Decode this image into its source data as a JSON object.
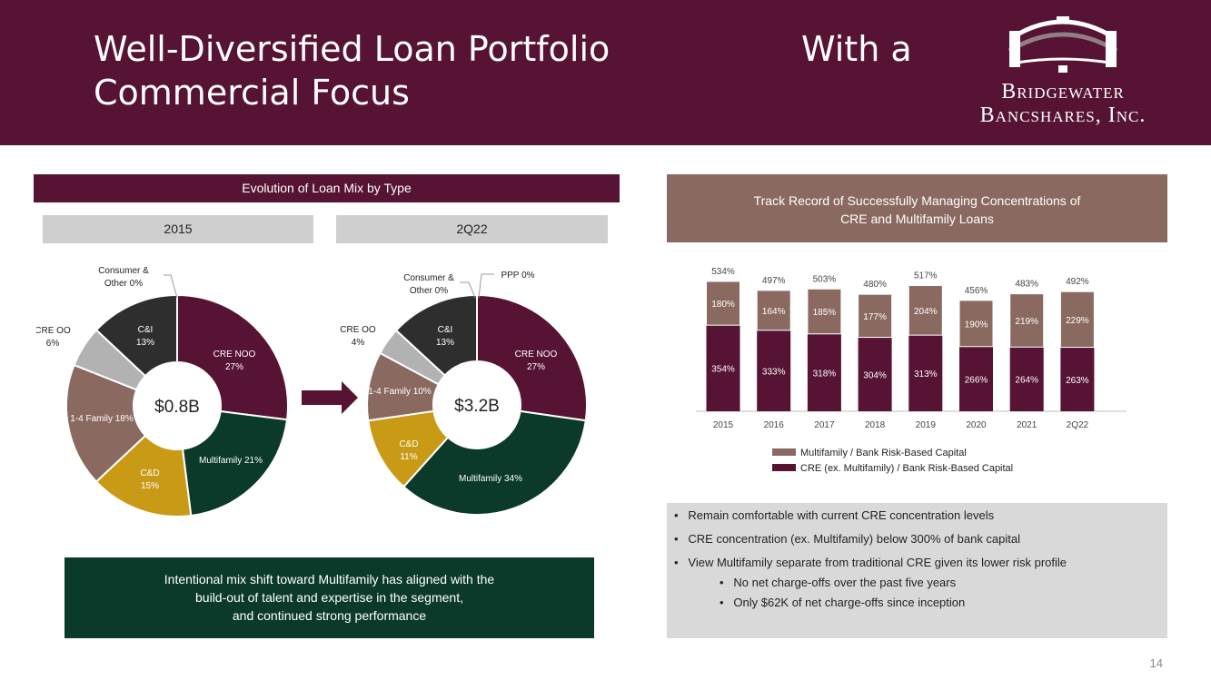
{
  "header": {
    "title_line1": "Well-Diversified Loan Portfolio",
    "title_with": "With a",
    "title_line2": "Commercial Focus",
    "logo_line1": "Bridgewater",
    "logo_line2": "Bancshares, Inc."
  },
  "left": {
    "section_title": "Evolution of Loan Mix by Type",
    "footer_line1": "Intentional mix shift toward Multifamily has aligned with the",
    "footer_line2": "build-out of talent and expertise in the segment,",
    "footer_line3": "and continued strong performance"
  },
  "right": {
    "section_title_line1": "Track Record of Successfully Managing Concentrations of",
    "section_title_line2": "CRE and Multifamily Loans",
    "bullets": [
      "Remain comfortable with current CRE concentration levels",
      "CRE concentration (ex. Multifamily) below 300% of bank capital",
      "View Multifamily separate from traditional CRE given its lower risk profile"
    ],
    "sub_bullets": [
      "No net charge-offs over the past five years",
      "Only $62K of net charge-offs since inception"
    ]
  },
  "page_number": "14",
  "colors": {
    "brand": "#561333",
    "cre_noo": "#561333",
    "multifamily": "#0b3a2b",
    "cd": "#c99a16",
    "one_four": "#8a6a60",
    "cre_oo": "#b2b2b2",
    "ci": "#2e2e2e",
    "chart_top": "#8a6a60",
    "chart_bottom": "#561333"
  },
  "chart_data": [
    {
      "type": "pie",
      "title": "2015",
      "center_label": "$0.8B",
      "slices": [
        {
          "label": "CRE NOO",
          "value": 27,
          "value_label": "27%",
          "label_style": "inside_two_line"
        },
        {
          "label": "Multifamily",
          "value": 21,
          "value_label": "21%",
          "label_style": "inside_one_line"
        },
        {
          "label": "C&D",
          "value": 15,
          "value_label": "15%",
          "label_style": "inside_two_line"
        },
        {
          "label": "1-4 Family",
          "value": 18,
          "value_label": "18%",
          "label_style": "inside_one_line"
        },
        {
          "label": "CRE OO",
          "value": 6,
          "value_label": "6%",
          "label_style": "outside"
        },
        {
          "label": "C&I",
          "value": 13,
          "value_label": "13%",
          "label_style": "inside_two_line"
        },
        {
          "label": "Consumer & Other",
          "value": 0,
          "value_label": "0%",
          "label_style": "outside"
        }
      ]
    },
    {
      "type": "pie",
      "title": "2Q22",
      "center_label": "$3.2B",
      "slices": [
        {
          "label": "CRE NOO",
          "value": 27,
          "value_label": "27%",
          "label_style": "inside_two_line"
        },
        {
          "label": "Multifamily",
          "value": 34,
          "value_label": "34%",
          "label_style": "inside_one_line"
        },
        {
          "label": "C&D",
          "value": 11,
          "value_label": "11%",
          "label_style": "inside_two_line"
        },
        {
          "label": "1-4 Family",
          "value": 10,
          "value_label": "10%",
          "label_style": "inside_one_line"
        },
        {
          "label": "CRE OO",
          "value": 4,
          "value_label": "4%",
          "label_style": "outside"
        },
        {
          "label": "C&I",
          "value": 13,
          "value_label": "13%",
          "label_style": "inside_two_line"
        },
        {
          "label": "Consumer & Other",
          "value": 0,
          "value_label": "0%",
          "label_style": "outside"
        },
        {
          "label": "PPP",
          "value": 0,
          "value_label": "0%",
          "label_style": "outside"
        }
      ]
    },
    {
      "type": "bar",
      "stacked": true,
      "categories": [
        "2015",
        "2016",
        "2017",
        "2018",
        "2019",
        "2020",
        "2021",
        "2Q22"
      ],
      "series": [
        {
          "name": "CRE (ex. Multifamily) / Bank Risk-Based Capital",
          "values": [
            354,
            333,
            318,
            304,
            313,
            266,
            264,
            263
          ],
          "labels": [
            "354%",
            "333%",
            "318%",
            "304%",
            "313%",
            "266%",
            "264%",
            "263%"
          ]
        },
        {
          "name": "Multifamily / Bank Risk-Based Capital",
          "values": [
            180,
            164,
            185,
            177,
            204,
            190,
            219,
            229
          ],
          "labels": [
            "180%",
            "164%",
            "185%",
            "177%",
            "204%",
            "190%",
            "219%",
            "229%"
          ]
        }
      ],
      "totals": [
        534,
        497,
        503,
        480,
        517,
        456,
        483,
        492
      ],
      "total_labels": [
        "534%",
        "497%",
        "503%",
        "480%",
        "517%",
        "456%",
        "483%",
        "492%"
      ],
      "legend": [
        "Multifamily / Bank Risk-Based Capital",
        "CRE (ex. Multifamily) / Bank Risk-Based Capital"
      ],
      "legend_position": "bottom",
      "ylim": [
        0,
        560
      ],
      "grid": false
    }
  ]
}
